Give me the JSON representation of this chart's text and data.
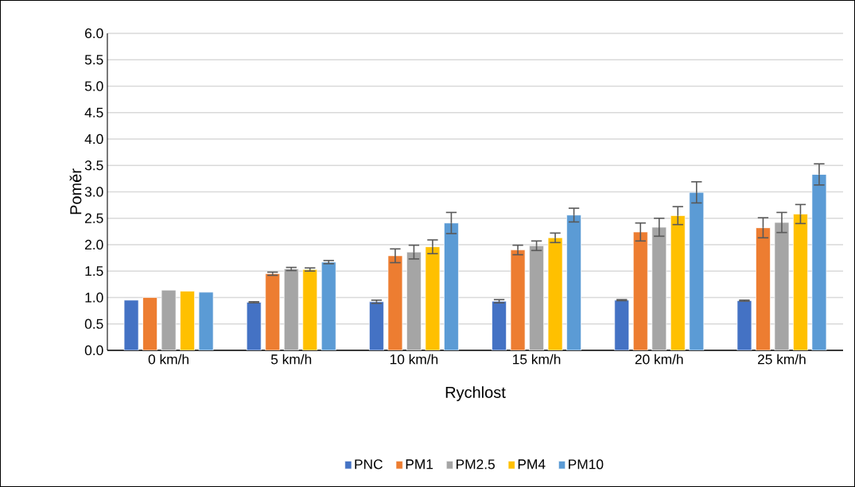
{
  "chart_data": {
    "type": "bar",
    "xlabel": "Rychlost",
    "ylabel": "Poměr",
    "categories": [
      "0 km/h",
      "5 km/h",
      "10 km/h",
      "15 km/h",
      "20 km/h",
      "25 km/h"
    ],
    "series": [
      {
        "name": "PNC",
        "color": "#4472c4",
        "values": [
          0.95,
          0.91,
          0.92,
          0.93,
          0.95,
          0.94
        ],
        "errors": [
          null,
          0.01,
          0.03,
          0.03,
          0.01,
          0.01
        ]
      },
      {
        "name": "PM1",
        "color": "#ed7d31",
        "values": [
          1.0,
          1.45,
          1.79,
          1.9,
          2.24,
          2.32
        ],
        "errors": [
          null,
          0.03,
          0.13,
          0.09,
          0.17,
          0.19
        ]
      },
      {
        "name": "PM2.5",
        "color": "#a5a5a5",
        "values": [
          1.14,
          1.54,
          1.86,
          1.98,
          2.33,
          2.42
        ],
        "errors": [
          null,
          0.03,
          0.13,
          0.09,
          0.17,
          0.19
        ]
      },
      {
        "name": "PM4",
        "color": "#ffc000",
        "values": [
          1.12,
          1.53,
          1.96,
          2.13,
          2.55,
          2.58
        ],
        "errors": [
          null,
          0.03,
          0.13,
          0.09,
          0.17,
          0.18
        ]
      },
      {
        "name": "PM10",
        "color": "#5b9bd5",
        "values": [
          1.1,
          1.67,
          2.41,
          2.56,
          2.99,
          3.33
        ],
        "errors": [
          null,
          0.03,
          0.2,
          0.13,
          0.2,
          0.2
        ]
      }
    ],
    "ylim": [
      0,
      6
    ],
    "yticks": [
      {
        "value": 0,
        "label": "0.0"
      },
      {
        "value": 0.5,
        "label": "0.5"
      },
      {
        "value": 1,
        "label": "1.0"
      },
      {
        "value": 1.5,
        "label": "1.5"
      },
      {
        "value": 2,
        "label": "2.0"
      },
      {
        "value": 2.5,
        "label": "2.5"
      },
      {
        "value": 3,
        "label": "3.0"
      },
      {
        "value": 3.5,
        "label": "3.5"
      },
      {
        "value": 4,
        "label": "4.0"
      },
      {
        "value": 4.5,
        "label": "4.5"
      },
      {
        "value": 5,
        "label": "5.0"
      },
      {
        "value": 5.5,
        "label": "5.5"
      },
      {
        "value": 6,
        "label": "6.0"
      }
    ],
    "grid": "y",
    "legend": "bottom"
  }
}
